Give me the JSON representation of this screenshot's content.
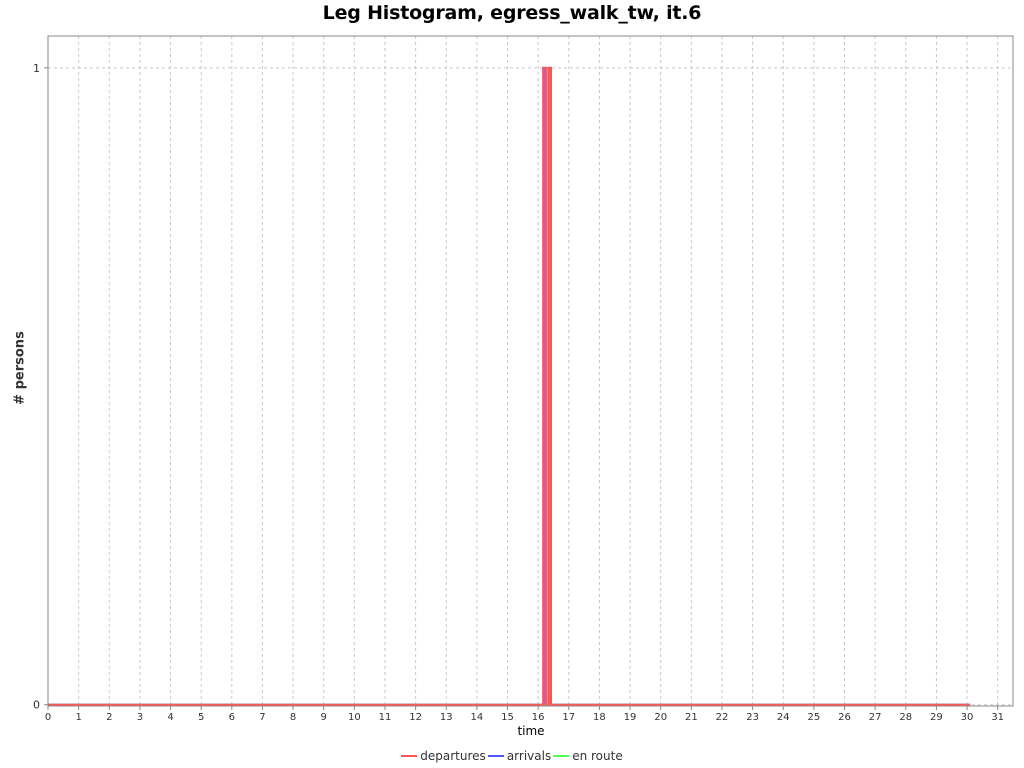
{
  "chart_data": {
    "type": "line",
    "title": "Leg Histogram, egress_walk_tw, it.6",
    "xlabel": "time",
    "ylabel": "# persons",
    "xlim": [
      0,
      31.5
    ],
    "ylim": [
      -0.002,
      1.05
    ],
    "x_ticks": [
      0,
      1,
      2,
      3,
      4,
      5,
      6,
      7,
      8,
      9,
      10,
      11,
      12,
      13,
      14,
      15,
      16,
      17,
      18,
      19,
      20,
      21,
      22,
      23,
      24,
      25,
      26,
      27,
      28,
      29,
      30,
      31
    ],
    "y_ticks": [
      0,
      1
    ],
    "grid": true,
    "legend_position": "bottom",
    "step": 0.0833333,
    "series": [
      {
        "name": "departures",
        "color": "#ff5555",
        "x": [
          0,
          16.1667,
          16.1667,
          16.25,
          16.25,
          16.3333,
          16.3333,
          16.4167,
          16.4167,
          16.5,
          16.5,
          30.1
        ],
        "y": [
          0,
          0,
          1,
          1,
          0,
          0,
          1,
          1,
          0,
          0,
          0,
          0
        ]
      },
      {
        "name": "arrivals",
        "color": "#5555ff",
        "x": [
          0,
          16.1667,
          16.1667,
          16.25,
          16.25,
          16.3333,
          16.3333,
          16.4167,
          16.4167,
          16.5,
          16.5,
          30.1
        ],
        "y": [
          0,
          0,
          1,
          1,
          0,
          0,
          1,
          1,
          0,
          0,
          0,
          0
        ]
      },
      {
        "name": "en route",
        "color": "#55ff55",
        "x": [
          0,
          30.1
        ],
        "y": [
          0,
          0
        ]
      }
    ],
    "bar_fill": "#e0607e"
  }
}
